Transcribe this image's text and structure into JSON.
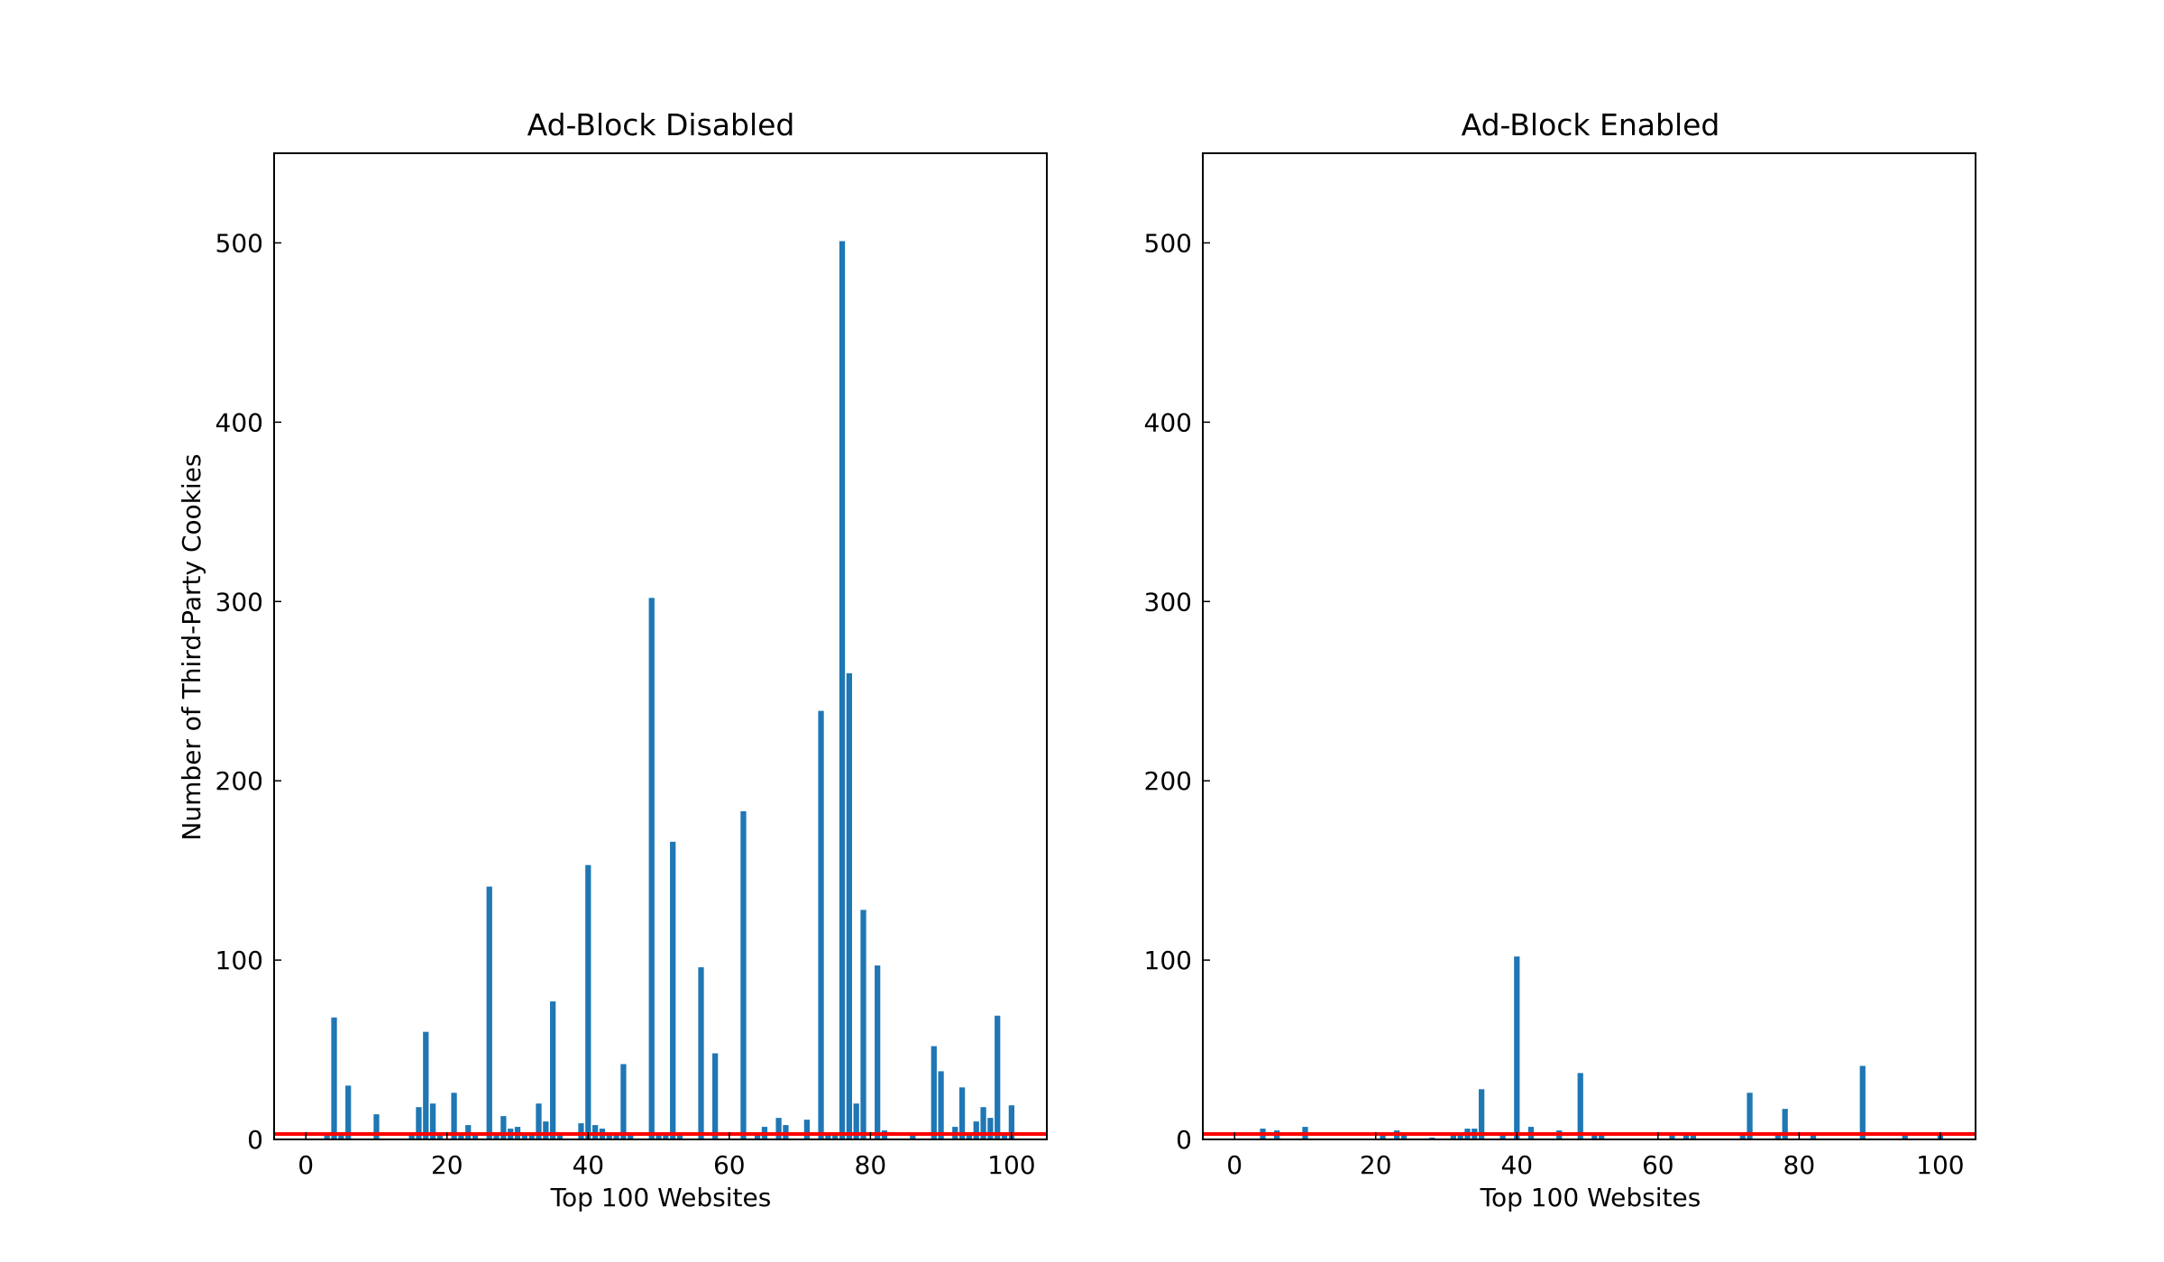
{
  "colors": {
    "bar": "#1f77b4",
    "reference_line": "#ff0000",
    "axes": "#000000",
    "background": "#ffffff"
  },
  "chart_data": [
    {
      "type": "bar",
      "title": "Ad-Block Disabled",
      "xlabel": "Top 100 Websites",
      "ylabel": "Number of Third-Party Cookies",
      "xlim": [
        -4.5,
        105
      ],
      "ylim": [
        0,
        550
      ],
      "xticks": [
        0,
        20,
        40,
        60,
        80,
        100
      ],
      "yticks": [
        0,
        100,
        200,
        300,
        400,
        500
      ],
      "reference_line_y": 3,
      "grid": false,
      "x": [
        3,
        4,
        5,
        6,
        10,
        15,
        16,
        17,
        18,
        19,
        21,
        22,
        23,
        24,
        26,
        27,
        28,
        29,
        30,
        31,
        32,
        33,
        34,
        35,
        36,
        39,
        40,
        41,
        42,
        43,
        44,
        45,
        46,
        49,
        50,
        51,
        52,
        53,
        56,
        58,
        62,
        64,
        65,
        67,
        68,
        71,
        73,
        74,
        75,
        76,
        77,
        78,
        79,
        81,
        82,
        86,
        89,
        90,
        92,
        93,
        94,
        95,
        96,
        97,
        98,
        99,
        100
      ],
      "values": [
        2,
        68,
        2,
        30,
        14,
        2,
        18,
        60,
        20,
        3,
        26,
        2,
        8,
        2,
        141,
        2,
        13,
        6,
        7,
        4,
        2,
        20,
        10,
        77,
        2,
        9,
        153,
        8,
        6,
        3,
        2,
        42,
        2,
        302,
        3,
        3,
        166,
        2,
        96,
        48,
        183,
        2,
        7,
        12,
        8,
        11,
        239,
        2,
        2,
        501,
        260,
        20,
        128,
        97,
        5,
        2,
        52,
        38,
        7,
        29,
        3,
        10,
        18,
        12,
        69,
        3,
        19
      ]
    },
    {
      "type": "bar",
      "title": "Ad-Block Enabled",
      "xlabel": "Top 100 Websites",
      "ylabel": "",
      "xlim": [
        -4.5,
        105
      ],
      "ylim": [
        0,
        550
      ],
      "xticks": [
        0,
        20,
        40,
        60,
        80,
        100
      ],
      "yticks": [
        0,
        100,
        200,
        300,
        400,
        500
      ],
      "reference_line_y": 3,
      "grid": false,
      "x": [
        4,
        6,
        10,
        21,
        23,
        24,
        28,
        31,
        32,
        33,
        34,
        35,
        38,
        40,
        42,
        46,
        49,
        51,
        52,
        62,
        64,
        65,
        72,
        73,
        77,
        78,
        82,
        89,
        95,
        100
      ],
      "values": [
        6,
        5,
        7,
        2,
        5,
        2,
        1,
        2,
        2,
        6,
        6,
        28,
        2,
        102,
        7,
        5,
        37,
        2,
        2,
        2,
        2,
        4,
        2,
        26,
        2,
        17,
        3,
        41,
        3,
        4
      ]
    }
  ]
}
